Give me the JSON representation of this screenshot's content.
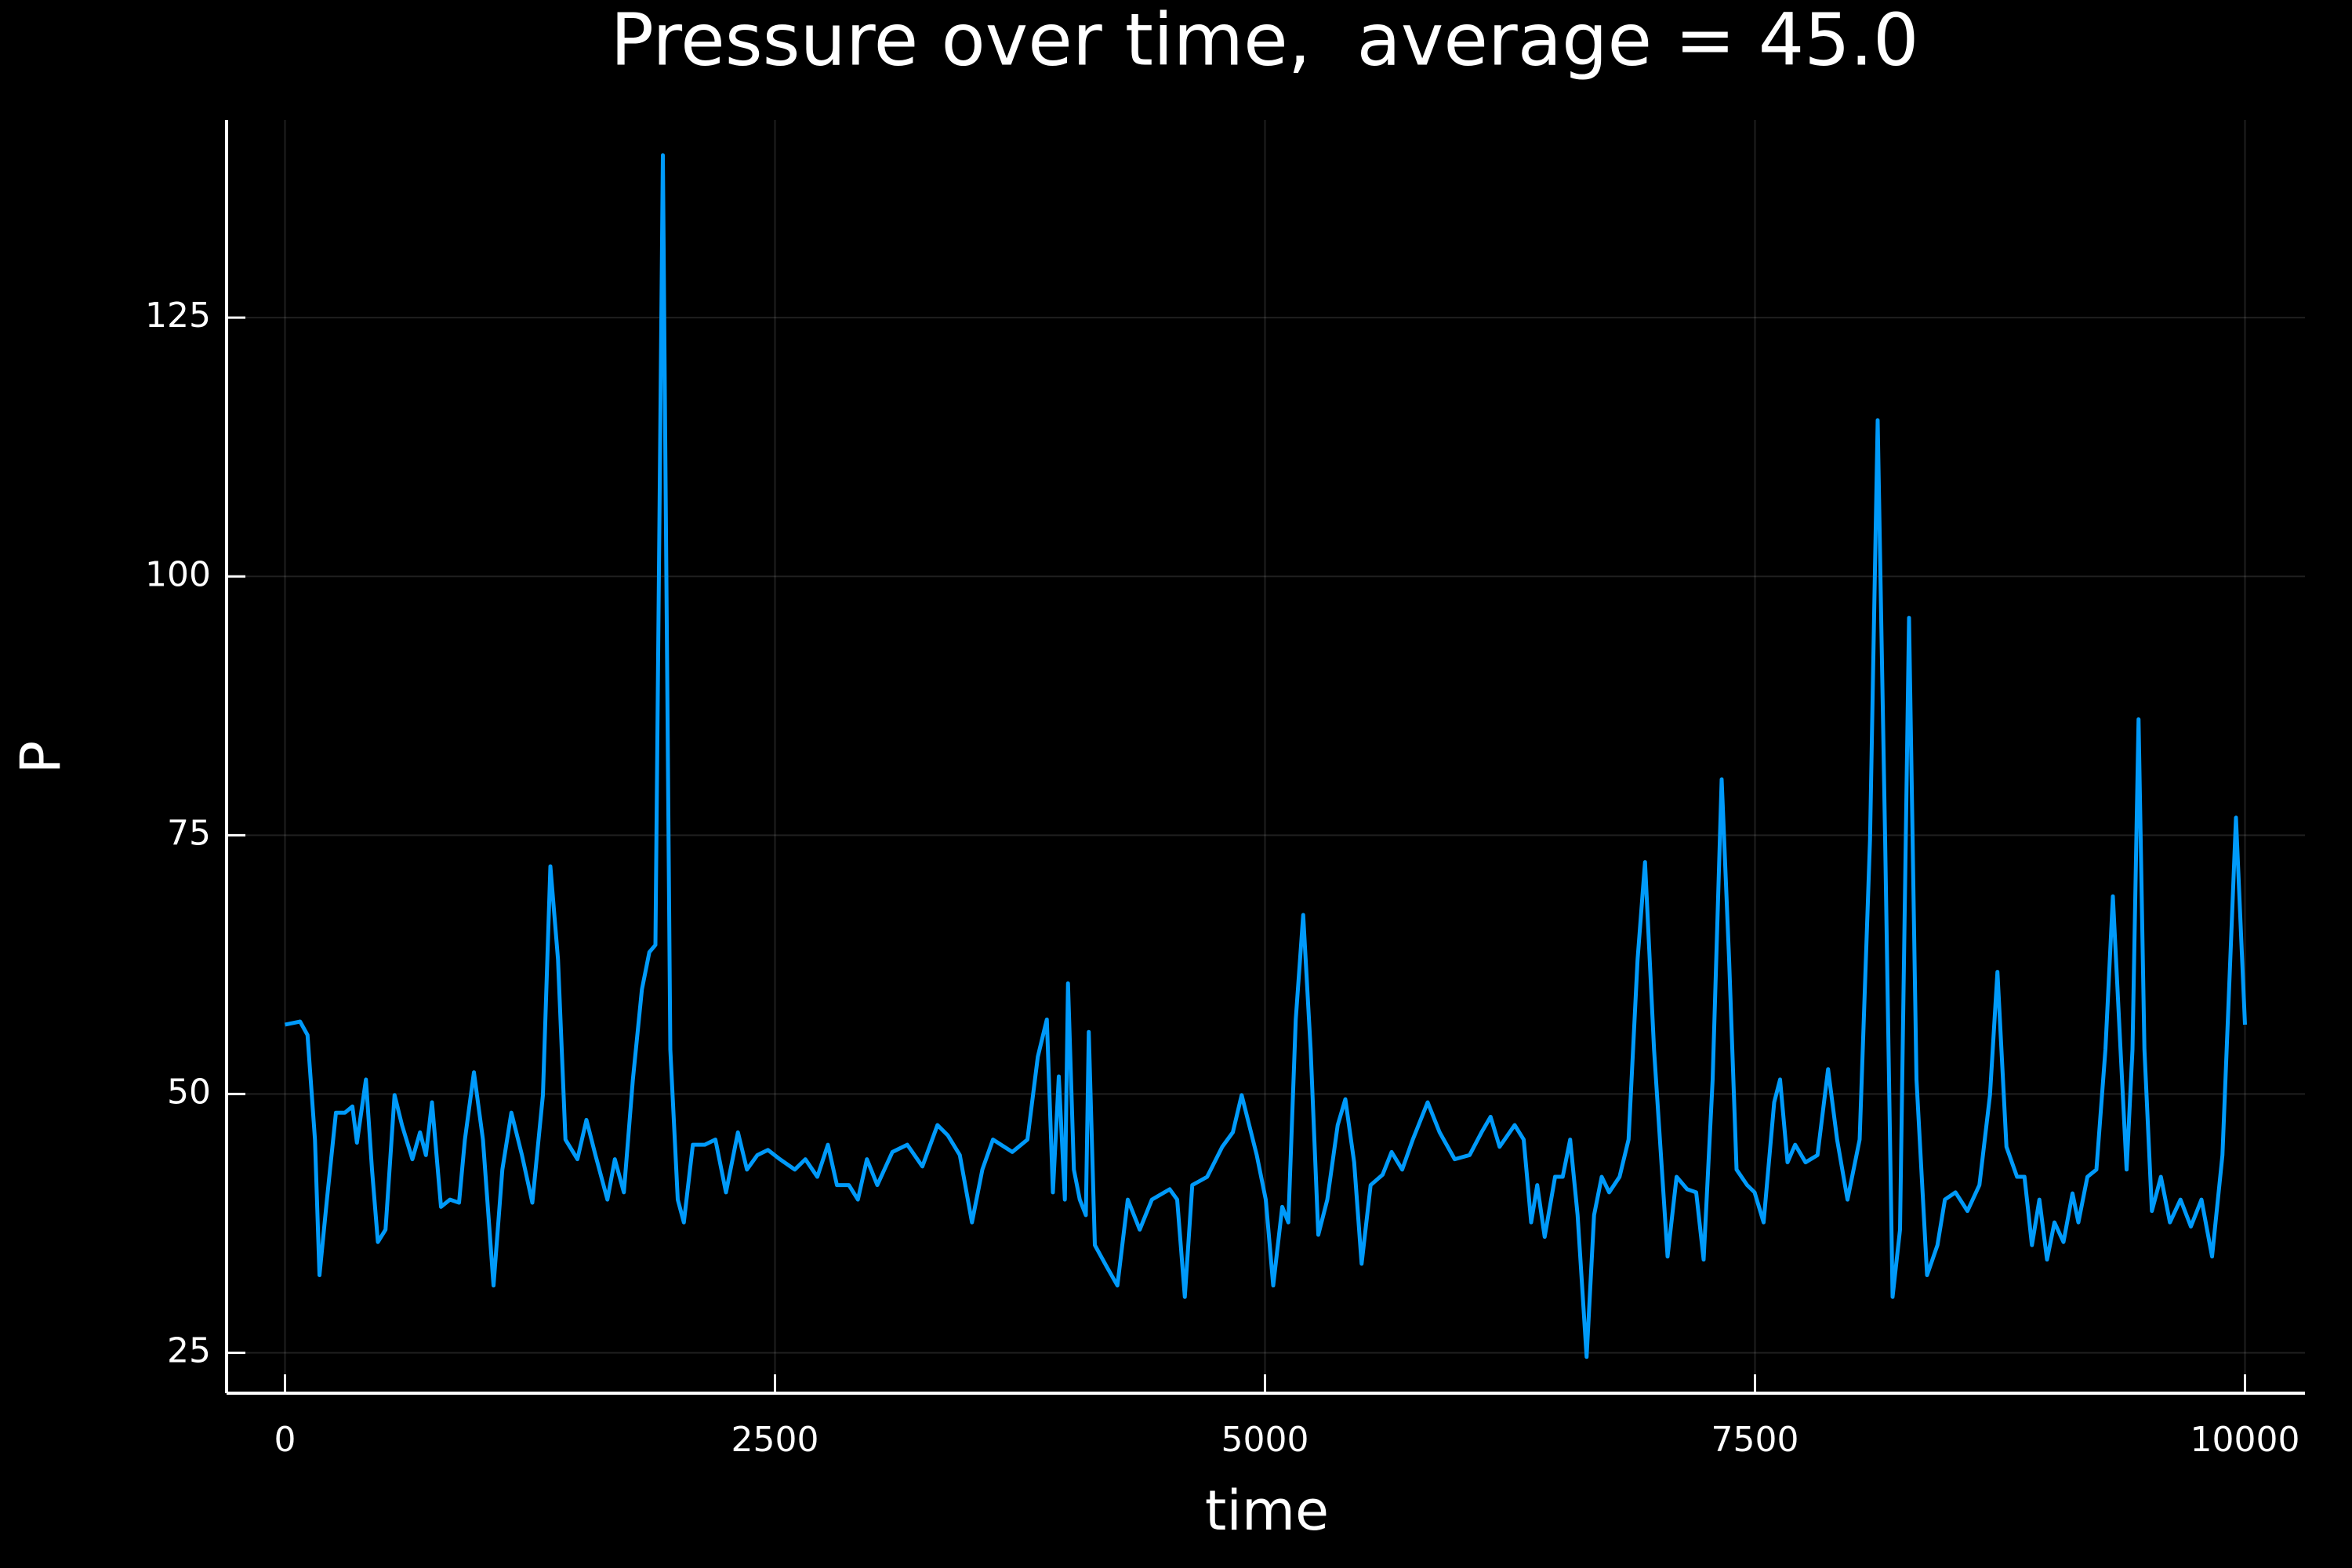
{
  "chart_data": {
    "type": "line",
    "title": "Pressure over time,  average = 45.0",
    "x_label": "time",
    "y_label": "P",
    "color": "#009afa",
    "grid": true,
    "xlim": [
      -298,
      10306
    ],
    "ylim": [
      21.1,
      144.1
    ],
    "xticks": [
      0,
      2500,
      5000,
      7500,
      10000
    ],
    "yticks": [
      25,
      50,
      75,
      100,
      125
    ],
    "x": [
      0,
      77,
      115,
      153,
      176,
      214,
      260,
      306,
      344,
      367,
      413,
      444,
      474,
      513,
      559,
      597,
      650,
      689,
      719,
      750,
      796,
      842,
      888,
      918,
      964,
      1010,
      1064,
      1109,
      1155,
      1209,
      1262,
      1316,
      1354,
      1393,
      1431,
      1492,
      1538,
      1584,
      1645,
      1683,
      1729,
      1775,
      1821,
      1859,
      1890,
      1928,
      1966,
      2004,
      2035,
      2081,
      2142,
      2196,
      2250,
      2311,
      2357,
      2410,
      2464,
      2525,
      2601,
      2655,
      2716,
      2770,
      2816,
      2877,
      2923,
      2969,
      3022,
      3099,
      3175,
      3252,
      3329,
      3382,
      3443,
      3505,
      3558,
      3612,
      3711,
      3788,
      3841,
      3887,
      3918,
      3948,
      3979,
      3995,
      4025,
      4055,
      4086,
      4101,
      4132,
      4193,
      4247,
      4300,
      4361,
      4423,
      4514,
      4552,
      4591,
      4629,
      4705,
      4782,
      4836,
      4881,
      4958,
      5004,
      5042,
      5088,
      5119,
      5157,
      5195,
      5233,
      5272,
      5318,
      5371,
      5410,
      5455,
      5493,
      5539,
      5600,
      5646,
      5700,
      5754,
      5830,
      5891,
      5968,
      6044,
      6105,
      6151,
      6197,
      6274,
      6320,
      6358,
      6389,
      6427,
      6480,
      6519,
      6557,
      6595,
      6641,
      6679,
      6718,
      6756,
      6809,
      6855,
      6901,
      6939,
      6985,
      7054,
      7100,
      7154,
      7200,
      7238,
      7284,
      7330,
      7368,
      7406,
      7460,
      7498,
      7544,
      7598,
      7628,
      7666,
      7705,
      7758,
      7819,
      7873,
      7919,
      7972,
      8034,
      8087,
      8126,
      8164,
      8202,
      8240,
      8286,
      8324,
      8378,
      8431,
      8469,
      8523,
      8584,
      8645,
      8699,
      8737,
      8783,
      8837,
      8875,
      8913,
      8951,
      8990,
      9028,
      9074,
      9120,
      9150,
      9196,
      9242,
      9288,
      9326,
      9365,
      9396,
      9426,
      9457,
      9487,
      9525,
      9571,
      9617,
      9671,
      9724,
      9778,
      9832,
      9885,
      9954,
      10000
    ],
    "values": [
      56.7,
      57,
      55.7,
      45.6,
      32.5,
      39.8,
      48.2,
      48.2,
      48.8,
      45.3,
      51.4,
      42.7,
      35.7,
      36.9,
      49.9,
      47,
      43.7,
      46.3,
      44.1,
      49.2,
      39.1,
      39.8,
      39.5,
      45.6,
      52.1,
      45.6,
      31.5,
      42.7,
      48.2,
      44.1,
      39.5,
      49.9,
      72,
      63,
      45.6,
      43.7,
      47.5,
      44.1,
      39.8,
      43.7,
      40.5,
      51.4,
      60.1,
      63.7,
      64.4,
      140.7,
      54.3,
      39.8,
      37.6,
      45.1,
      45.1,
      45.6,
      40.5,
      46.3,
      42.7,
      44.1,
      44.6,
      43.7,
      42.7,
      43.7,
      42,
      45.1,
      41.2,
      41.2,
      39.8,
      43.7,
      41.2,
      44.4,
      45.1,
      43,
      47,
      46,
      44.1,
      37.6,
      42.7,
      45.6,
      44.4,
      45.6,
      53.6,
      57.2,
      40.5,
      51.7,
      39.8,
      60.7,
      42.7,
      39.8,
      38.3,
      56,
      35.4,
      33.3,
      31.5,
      39.8,
      36.9,
      39.8,
      40.8,
      39.8,
      30.4,
      41.2,
      42,
      44.9,
      46.3,
      49.9,
      44.1,
      39.8,
      31.5,
      39.1,
      37.6,
      57.2,
      67.3,
      54.3,
      36.4,
      39.8,
      47,
      49.5,
      43.4,
      33.6,
      41.2,
      42.2,
      44.4,
      42.7,
      45.6,
      49.2,
      46.3,
      43.7,
      44.1,
      46.3,
      47.8,
      44.9,
      47,
      45.6,
      37.6,
      41.2,
      36.2,
      42,
      42,
      45.6,
      38.3,
      24.6,
      38.3,
      42,
      40.5,
      42,
      45.6,
      63,
      72.4,
      54.3,
      34.3,
      42,
      40.8,
      40.5,
      34,
      51.4,
      80.4,
      63,
      42.7,
      41.2,
      40.5,
      37.6,
      49.2,
      51.4,
      43.4,
      45.1,
      43.4,
      44.1,
      52.4,
      45.6,
      39.8,
      45.6,
      74.6,
      115.1,
      74.6,
      30.4,
      36.9,
      96,
      51.4,
      32.5,
      35.4,
      39.8,
      40.5,
      38.7,
      41.2,
      49.9,
      61.8,
      44.9,
      42,
      42,
      35.4,
      39.8,
      34,
      37.6,
      35.7,
      40.4,
      37.6,
      42,
      42.7,
      54.3,
      69.1,
      54.3,
      42.7,
      54.3,
      86.2,
      54.3,
      38.7,
      42,
      37.6,
      39.8,
      37.2,
      39.8,
      34.3,
      44.1,
      76.7,
      56.7
    ]
  }
}
